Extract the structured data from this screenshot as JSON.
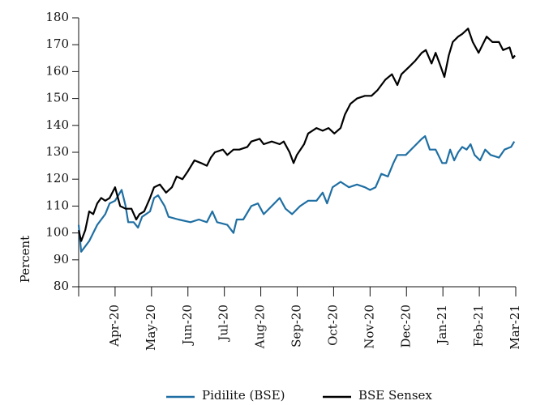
{
  "chart_data": {
    "type": "line",
    "ylabel": "Percent",
    "ylim": [
      80,
      180
    ],
    "yticks": [
      80,
      90,
      100,
      110,
      120,
      130,
      140,
      150,
      160,
      170,
      180
    ],
    "xlim": [
      0,
      12
    ],
    "xticks": [
      {
        "value": 1,
        "label": "Apr-20"
      },
      {
        "value": 2,
        "label": "May-20"
      },
      {
        "value": 3,
        "label": "Jun-20"
      },
      {
        "value": 4,
        "label": "Jul-20"
      },
      {
        "value": 5,
        "label": "Aug-20"
      },
      {
        "value": 6,
        "label": "Sep-20"
      },
      {
        "value": 7,
        "label": "Oct-20"
      },
      {
        "value": 8,
        "label": "Nov-20"
      },
      {
        "value": 9,
        "label": "Dec-20"
      },
      {
        "value": 10,
        "label": "Jan-21"
      },
      {
        "value": 11,
        "label": "Feb-21"
      },
      {
        "value": 12,
        "label": "Mar-21"
      }
    ],
    "series": [
      {
        "name": "Pidilite (BSE)",
        "color": "#1f6fa3",
        "x": [
          0,
          0.07,
          0.29,
          0.51,
          0.73,
          0.85,
          1.0,
          1.18,
          1.29,
          1.36,
          1.51,
          1.63,
          1.74,
          1.96,
          2.07,
          2.18,
          2.36,
          2.47,
          2.74,
          3.07,
          3.3,
          3.52,
          3.67,
          3.8,
          4.08,
          4.25,
          4.34,
          4.52,
          4.74,
          4.92,
          5.08,
          5.3,
          5.52,
          5.68,
          5.86,
          6.08,
          6.3,
          6.53,
          6.7,
          6.82,
          6.97,
          7.19,
          7.42,
          7.64,
          7.86,
          8.0,
          8.15,
          8.31,
          8.49,
          8.64,
          8.75,
          8.98,
          9.2,
          9.42,
          9.51,
          9.64,
          9.8,
          9.98,
          10.09,
          10.2,
          10.31,
          10.42,
          10.53,
          10.65,
          10.76,
          10.87,
          11.02,
          11.16,
          11.31,
          11.54,
          11.69,
          11.87,
          11.96
        ],
        "values": [
          103,
          93,
          97,
          103,
          107,
          111,
          112,
          116,
          110,
          104,
          104,
          102,
          106,
          108,
          113,
          114,
          110,
          106,
          105,
          104,
          105,
          104,
          108,
          104,
          103,
          100,
          105,
          105,
          110,
          111,
          107,
          110,
          113,
          109,
          107,
          110,
          112,
          112,
          115,
          111,
          117,
          119,
          117,
          118,
          117,
          116,
          117,
          122,
          121,
          126,
          129,
          129,
          132,
          135,
          136,
          131,
          131,
          126,
          126,
          131,
          127,
          130,
          132,
          131,
          133,
          129,
          127,
          131,
          129,
          128,
          131,
          132,
          134
        ]
      },
      {
        "name": "BSE Sensex",
        "color": "#000000",
        "x": [
          0,
          0.07,
          0.18,
          0.29,
          0.4,
          0.51,
          0.62,
          0.73,
          0.85,
          1.0,
          1.14,
          1.29,
          1.45,
          1.58,
          1.67,
          1.8,
          1.96,
          2.07,
          2.23,
          2.4,
          2.56,
          2.69,
          2.85,
          3.0,
          3.18,
          3.36,
          3.52,
          3.63,
          3.74,
          3.96,
          4.08,
          4.25,
          4.41,
          4.63,
          4.74,
          4.97,
          5.08,
          5.3,
          5.52,
          5.63,
          5.79,
          5.9,
          5.99,
          6.19,
          6.3,
          6.53,
          6.7,
          6.86,
          7.02,
          7.19,
          7.31,
          7.46,
          7.64,
          7.86,
          8.04,
          8.2,
          8.42,
          8.6,
          8.75,
          8.86,
          9.09,
          9.24,
          9.42,
          9.53,
          9.69,
          9.8,
          9.91,
          10.04,
          10.16,
          10.27,
          10.42,
          10.53,
          10.69,
          10.82,
          10.98,
          11.09,
          11.2,
          11.36,
          11.54,
          11.65,
          11.83,
          11.92,
          11.98
        ],
        "values": [
          101,
          97,
          101,
          108,
          107,
          111,
          113,
          112,
          113,
          117,
          110,
          109,
          109,
          105,
          107,
          108,
          113,
          117,
          118,
          115,
          117,
          121,
          120,
          123,
          127,
          126,
          125,
          128,
          130,
          131,
          129,
          131,
          131,
          132,
          134,
          135,
          133,
          134,
          133,
          134,
          130,
          126,
          129,
          133,
          137,
          139,
          138,
          139,
          137,
          139,
          144,
          148,
          150,
          151,
          151,
          153,
          157,
          159,
          155,
          159,
          162,
          164,
          167,
          168,
          163,
          167,
          163,
          158,
          166,
          171,
          173,
          174,
          176,
          171,
          167,
          170,
          173,
          171,
          171,
          168,
          169,
          165,
          166
        ]
      }
    ]
  }
}
